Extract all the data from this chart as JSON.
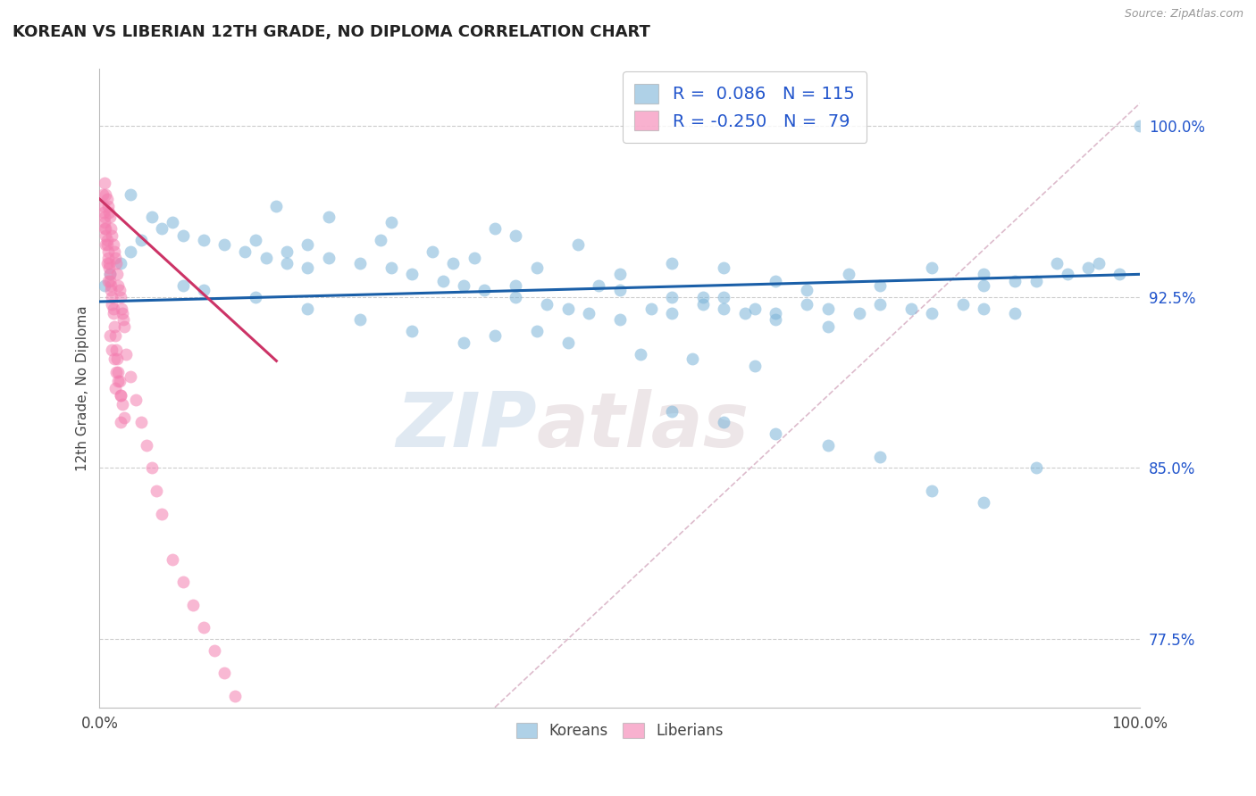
{
  "title": "KOREAN VS LIBERIAN 12TH GRADE, NO DIPLOMA CORRELATION CHART",
  "source_text": "Source: ZipAtlas.com",
  "ylabel": "12th Grade, No Diploma",
  "xlim": [
    0.0,
    1.0
  ],
  "ylim": [
    0.745,
    1.025
  ],
  "yticks": [
    0.775,
    0.85,
    0.925,
    1.0
  ],
  "ytick_labels": [
    "77.5%",
    "85.0%",
    "92.5%",
    "100.0%"
  ],
  "xtick_labels": [
    "0.0%",
    "100.0%"
  ],
  "xticks": [
    0.0,
    1.0
  ],
  "korean_color": "#7ab3d8",
  "liberian_color": "#f47eb0",
  "korean_R": 0.086,
  "korean_N": 115,
  "liberian_R": -0.25,
  "liberian_N": 79,
  "watermark_zip": "ZIP",
  "watermark_atlas": "atlas",
  "background_color": "#ffffff",
  "grid_color": "#cccccc",
  "korean_scatter_x": [
    0.03,
    0.22,
    0.27,
    0.17,
    0.38,
    0.32,
    0.28,
    0.34,
    0.4,
    0.46,
    0.42,
    0.36,
    0.5,
    0.55,
    0.48,
    0.6,
    0.58,
    0.65,
    0.68,
    0.72,
    0.75,
    0.8,
    0.85,
    0.88,
    0.92,
    0.95,
    0.98,
    1.0,
    0.15,
    0.18,
    0.2,
    0.22,
    0.25,
    0.28,
    0.3,
    0.33,
    0.35,
    0.37,
    0.4,
    0.43,
    0.45,
    0.47,
    0.5,
    0.53,
    0.55,
    0.58,
    0.6,
    0.63,
    0.65,
    0.68,
    0.7,
    0.73,
    0.75,
    0.78,
    0.8,
    0.83,
    0.85,
    0.88,
    0.1,
    0.12,
    0.14,
    0.16,
    0.18,
    0.2,
    0.08,
    0.07,
    0.06,
    0.05,
    0.04,
    0.03,
    0.02,
    0.01,
    0.005,
    0.4,
    0.5,
    0.55,
    0.6,
    0.62,
    0.65,
    0.7,
    0.45,
    0.52,
    0.57,
    0.63,
    0.38,
    0.42,
    0.55,
    0.6,
    0.65,
    0.7,
    0.75,
    0.8,
    0.85,
    0.9,
    0.35,
    0.3,
    0.25,
    0.2,
    0.15,
    0.1,
    0.08,
    0.85,
    0.9,
    0.93,
    0.96
  ],
  "korean_scatter_y": [
    0.97,
    0.96,
    0.95,
    0.965,
    0.955,
    0.945,
    0.958,
    0.94,
    0.952,
    0.948,
    0.938,
    0.942,
    0.935,
    0.94,
    0.93,
    0.938,
    0.925,
    0.932,
    0.928,
    0.935,
    0.93,
    0.938,
    0.935,
    0.932,
    0.94,
    0.938,
    0.935,
    1.0,
    0.95,
    0.945,
    0.948,
    0.942,
    0.94,
    0.938,
    0.935,
    0.932,
    0.93,
    0.928,
    0.925,
    0.922,
    0.92,
    0.918,
    0.915,
    0.92,
    0.918,
    0.922,
    0.925,
    0.92,
    0.918,
    0.922,
    0.92,
    0.918,
    0.922,
    0.92,
    0.918,
    0.922,
    0.92,
    0.918,
    0.95,
    0.948,
    0.945,
    0.942,
    0.94,
    0.938,
    0.952,
    0.958,
    0.955,
    0.96,
    0.95,
    0.945,
    0.94,
    0.935,
    0.93,
    0.93,
    0.928,
    0.925,
    0.92,
    0.918,
    0.915,
    0.912,
    0.905,
    0.9,
    0.898,
    0.895,
    0.908,
    0.91,
    0.875,
    0.87,
    0.865,
    0.86,
    0.855,
    0.84,
    0.835,
    0.85,
    0.905,
    0.91,
    0.915,
    0.92,
    0.925,
    0.928,
    0.93,
    0.93,
    0.932,
    0.935,
    0.94
  ],
  "liberian_scatter_x": [
    0.005,
    0.006,
    0.007,
    0.008,
    0.009,
    0.01,
    0.011,
    0.012,
    0.013,
    0.014,
    0.015,
    0.016,
    0.017,
    0.018,
    0.019,
    0.02,
    0.021,
    0.022,
    0.023,
    0.024,
    0.005,
    0.006,
    0.007,
    0.008,
    0.009,
    0.01,
    0.011,
    0.012,
    0.013,
    0.014,
    0.015,
    0.016,
    0.017,
    0.018,
    0.019,
    0.02,
    0.004,
    0.005,
    0.006,
    0.007,
    0.008,
    0.009,
    0.01,
    0.011,
    0.012,
    0.013,
    0.025,
    0.03,
    0.035,
    0.04,
    0.045,
    0.05,
    0.055,
    0.06,
    0.07,
    0.08,
    0.09,
    0.1,
    0.11,
    0.12,
    0.13,
    0.01,
    0.012,
    0.014,
    0.016,
    0.018,
    0.02,
    0.022,
    0.024,
    0.003,
    0.004,
    0.005,
    0.006,
    0.007,
    0.008,
    0.015,
    0.02
  ],
  "liberian_scatter_y": [
    0.975,
    0.97,
    0.968,
    0.965,
    0.962,
    0.96,
    0.955,
    0.952,
    0.948,
    0.945,
    0.942,
    0.94,
    0.935,
    0.93,
    0.928,
    0.925,
    0.92,
    0.918,
    0.915,
    0.912,
    0.958,
    0.952,
    0.948,
    0.942,
    0.938,
    0.932,
    0.928,
    0.922,
    0.918,
    0.912,
    0.908,
    0.902,
    0.898,
    0.892,
    0.888,
    0.882,
    0.965,
    0.96,
    0.955,
    0.95,
    0.945,
    0.94,
    0.935,
    0.93,
    0.925,
    0.92,
    0.9,
    0.89,
    0.88,
    0.87,
    0.86,
    0.85,
    0.84,
    0.83,
    0.81,
    0.8,
    0.79,
    0.78,
    0.77,
    0.76,
    0.75,
    0.908,
    0.902,
    0.898,
    0.892,
    0.888,
    0.882,
    0.878,
    0.872,
    0.97,
    0.962,
    0.955,
    0.948,
    0.94,
    0.932,
    0.885,
    0.87
  ],
  "korean_trend_x": [
    0.0,
    1.0
  ],
  "korean_trend_y": [
    0.923,
    0.935
  ],
  "liberian_trend_x": [
    0.0,
    0.17
  ],
  "liberian_trend_y": [
    0.968,
    0.897
  ],
  "ref_line_x": [
    0.38,
    1.0
  ],
  "ref_line_y": [
    0.745,
    1.01
  ]
}
